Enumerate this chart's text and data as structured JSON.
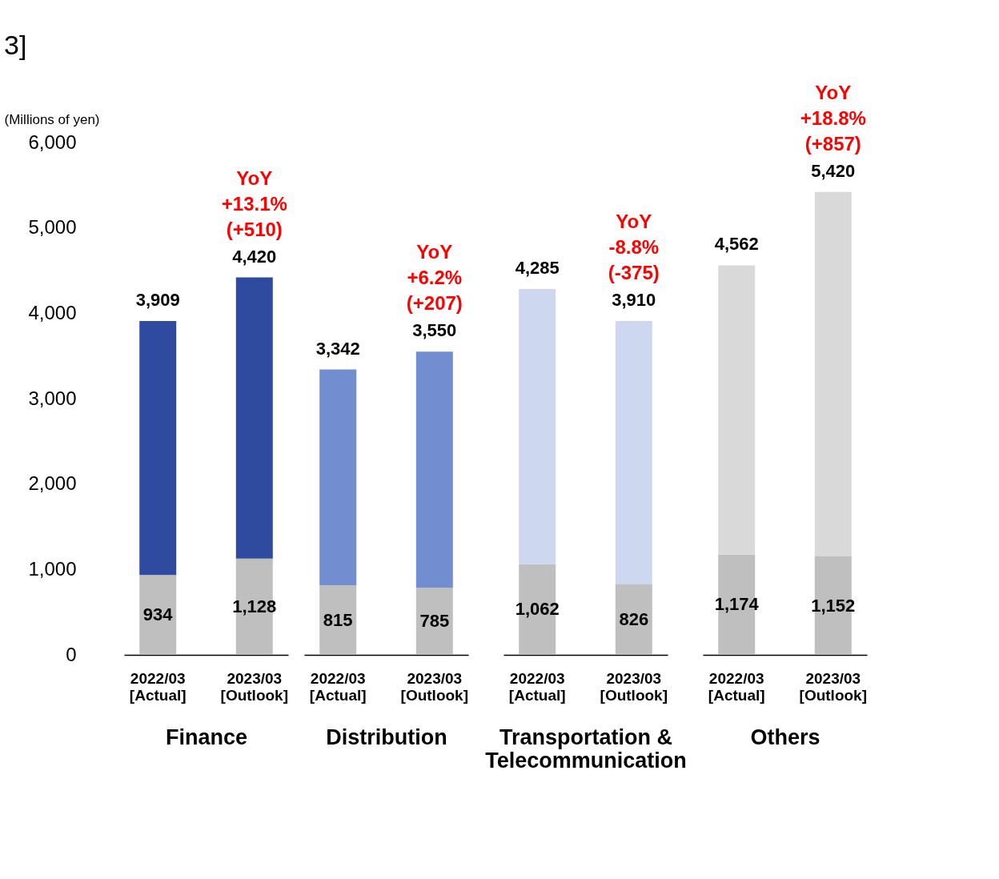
{
  "chart_data": [
    {
      "type": "bar",
      "title": "3]",
      "ylabel": "(Millions of yen)",
      "xlabel": "Finance",
      "stacked": true,
      "categories": [
        "2022/03\n[Actual]",
        "2023/03\n[Outlook]"
      ],
      "ylim": [
        0,
        6000
      ],
      "yticks": [
        0,
        {
          "value": 1000,
          "label": "1,000"
        },
        {
          "value": 2000,
          "label": "2,000"
        },
        {
          "value": 3000,
          "label": "3,000"
        },
        {
          "value": 4000,
          "label": "4,000"
        },
        {
          "value": 5000,
          "label": "5,000"
        },
        {
          "value": 6000,
          "label": "6,000"
        }
      ],
      "grid": false,
      "series": [
        {
          "color": "#bfbfbf",
          "values": [
            934,
            1128
          ],
          "value_labels": [
            "934",
            "1,128"
          ]
        },
        {
          "colors": [
            "#2e4b9f",
            "#2e4b9f"
          ],
          "values": [
            2975,
            3292
          ]
        }
      ],
      "totals": [
        "3,909",
        "4,420"
      ],
      "annotations": [
        {
          "text": "YoY\n+13.1%\n(+510)",
          "x": "2023/03\n[Outlook]",
          "y": 4420
        }
      ]
    },
    {
      "type": "bar",
      "xlabel": "Distribution",
      "stacked": true,
      "categories": [
        "2022/03\n[Actual]",
        "2023/03\n[Outlook]"
      ],
      "ylim": [
        0,
        6000
      ],
      "tick_labels": "x",
      "grid": false,
      "series": [
        {
          "color": "#bfbfbf",
          "values": [
            815,
            785
          ],
          "value_labels": [
            "815",
            "785"
          ]
        },
        {
          "colors": [
            "#728dd0",
            "#728dd0"
          ],
          "values": [
            2527,
            2765
          ]
        }
      ],
      "totals": [
        "3,342",
        "3,550"
      ],
      "annotations": [
        {
          "text": "YoY\n+6.2%\n(+207)",
          "x": "2023/03\n[Outlook]",
          "y": 3550
        }
      ]
    },
    {
      "type": "bar",
      "xlabel": "Transportation &\nTelecommunication",
      "stacked": true,
      "categories": [
        "2022/03\n[Actual]",
        "2023/03\n[Outlook]"
      ],
      "ylim": [
        0,
        6000
      ],
      "tick_labels": "x",
      "grid": false,
      "series": [
        {
          "color": "#bfbfbf",
          "values": [
            1062,
            826
          ],
          "value_labels": [
            "1,062",
            "826"
          ]
        },
        {
          "colors": [
            "#cdd8f0",
            "#cdd8f0"
          ],
          "values": [
            3223,
            3084
          ]
        }
      ],
      "totals": [
        "4,285",
        "3,910"
      ],
      "annotations": [
        {
          "text": "YoY\n-8.8%\n(-375)",
          "x": "2023/03\n[Outlook]",
          "y": 3910
        }
      ]
    },
    {
      "type": "bar",
      "xlabel": "Others",
      "stacked": true,
      "categories": [
        "2022/03\n[Actual]",
        "2023/03\n[Outlook]"
      ],
      "ylim": [
        0,
        6000
      ],
      "tick_labels": "x",
      "grid": false,
      "series": [
        {
          "color": "#bfbfbf",
          "values": [
            1174,
            1152
          ],
          "value_labels": [
            "1,174",
            "1,152"
          ]
        },
        {
          "colors": [
            "#d9d9d9",
            "#d9d9d9"
          ],
          "values": [
            3388,
            4268
          ]
        }
      ],
      "totals": [
        "4,562",
        "5,420"
      ],
      "annotations": [
        {
          "text": "YoY\n+18.8%\n(+857)",
          "x": "2023/03\n[Outlook]",
          "y": 5420
        }
      ]
    }
  ]
}
